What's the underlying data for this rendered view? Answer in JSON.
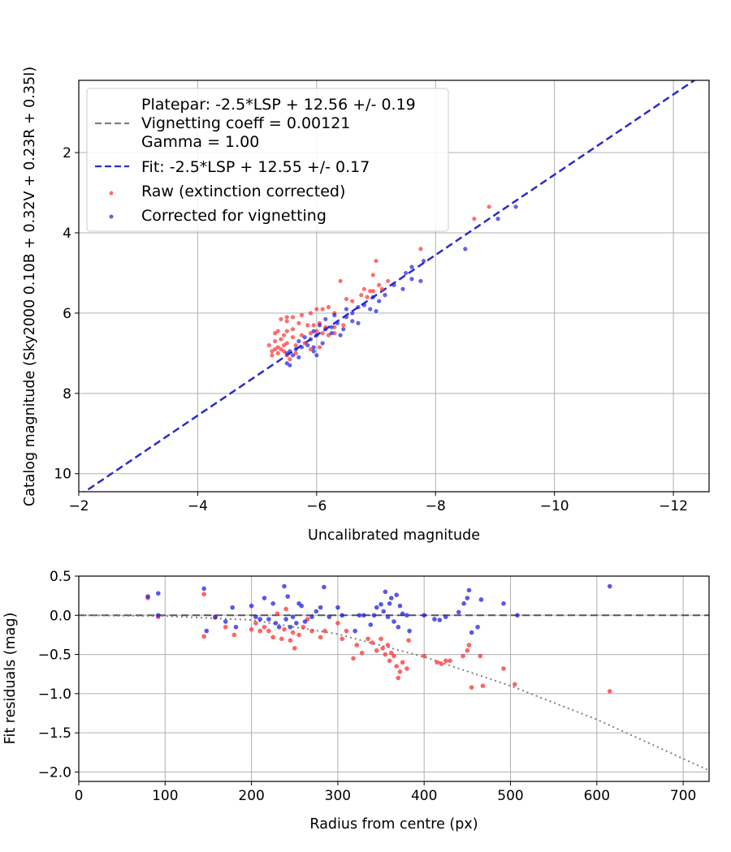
{
  "chart_data": [
    {
      "type": "scatter",
      "xlabel": "Uncalibrated magnitude",
      "ylabel": "Catalog magnitude (Sky2000 0.10B + 0.32V + 0.23R + 0.35I)",
      "xlim": [
        -2,
        -12.6
      ],
      "ylim": [
        10.45,
        0.2
      ],
      "x_reversed": true,
      "y_reversed": true,
      "xticks": [
        -2,
        -4,
        -6,
        -8,
        -10,
        -12
      ],
      "xtick_labels": [
        "−2",
        "−4",
        "−6",
        "−8",
        "−10",
        "−12"
      ],
      "yticks": [
        2,
        4,
        6,
        8,
        10
      ],
      "ytick_labels": [
        "2",
        "4",
        "6",
        "8",
        "10"
      ],
      "grid": true,
      "legend_position": "top-left",
      "legend": {
        "platepar_label": "Platepar: -2.5*LSP + 12.56 +/- 0.19",
        "vignetting_label": "Vignetting coeff = 0.00121",
        "gamma_label": "Gamma = 1.00",
        "fit_label": "Fit: -2.5*LSP + 12.55 +/- 0.17",
        "raw_label": "Raw (extinction corrected)",
        "corrected_label": "Corrected for vignetting"
      },
      "lines": [
        {
          "name": "platepar",
          "slope": -2.5,
          "intercept": 12.56,
          "color": "#808080",
          "style": "dashed"
        },
        {
          "name": "fit",
          "slope": -2.5,
          "intercept": 12.55,
          "color": "#2a2ad0",
          "style": "dashed"
        }
      ],
      "series": [
        {
          "name": "Raw (extinction corrected)",
          "color": "#ff3030",
          "points": [
            [
              -8.9,
              3.35
            ],
            [
              -8.65,
              3.65
            ],
            [
              -7.75,
              4.4
            ],
            [
              -7.0,
              4.7
            ],
            [
              -6.95,
              5.05
            ],
            [
              -7.2,
              5.2
            ],
            [
              -6.4,
              5.2
            ],
            [
              -7.05,
              5.3
            ],
            [
              -6.8,
              5.4
            ],
            [
              -6.9,
              5.45
            ],
            [
              -6.75,
              5.55
            ],
            [
              -6.85,
              5.6
            ],
            [
              -6.95,
              5.45
            ],
            [
              -7.1,
              5.4
            ],
            [
              -6.6,
              5.7
            ],
            [
              -6.5,
              5.65
            ],
            [
              -6.2,
              5.85
            ],
            [
              -6.1,
              5.9
            ],
            [
              -6.0,
              5.9
            ],
            [
              -6.3,
              6.0
            ],
            [
              -5.9,
              6.0
            ],
            [
              -5.75,
              6.05
            ],
            [
              -5.6,
              6.1
            ],
            [
              -5.5,
              6.1
            ],
            [
              -5.4,
              6.15
            ],
            [
              -5.5,
              6.2
            ],
            [
              -5.7,
              6.25
            ],
            [
              -5.85,
              6.3
            ],
            [
              -5.95,
              6.3
            ],
            [
              -6.05,
              6.25
            ],
            [
              -6.15,
              6.35
            ],
            [
              -6.3,
              6.35
            ],
            [
              -6.45,
              6.3
            ],
            [
              -5.6,
              6.4
            ],
            [
              -5.5,
              6.45
            ],
            [
              -5.35,
              6.45
            ],
            [
              -5.3,
              6.5
            ],
            [
              -5.45,
              6.55
            ],
            [
              -5.6,
              6.6
            ],
            [
              -5.75,
              6.55
            ],
            [
              -5.9,
              6.5
            ],
            [
              -6.0,
              6.45
            ],
            [
              -6.1,
              6.5
            ],
            [
              -6.2,
              6.55
            ],
            [
              -6.3,
              6.5
            ],
            [
              -5.4,
              6.65
            ],
            [
              -5.3,
              6.7
            ],
            [
              -5.2,
              6.8
            ],
            [
              -5.35,
              6.85
            ],
            [
              -5.5,
              6.75
            ],
            [
              -5.65,
              6.8
            ],
            [
              -5.8,
              6.75
            ],
            [
              -5.45,
              6.95
            ],
            [
              -5.35,
              7.0
            ],
            [
              -5.25,
              7.05
            ],
            [
              -5.5,
              7.05
            ],
            [
              -5.9,
              6.9
            ],
            [
              -6.05,
              6.85
            ],
            [
              -5.55,
              7.15
            ],
            [
              -5.65,
              7.0
            ],
            [
              -5.4,
              6.9
            ],
            [
              -5.3,
              6.9
            ],
            [
              -5.45,
              6.8
            ],
            [
              -5.25,
              6.95
            ]
          ]
        },
        {
          "name": "Corrected for vignetting",
          "color": "#2020e0",
          "points": [
            [
              -9.35,
              3.35
            ],
            [
              -9.05,
              3.65
            ],
            [
              -8.5,
              4.4
            ],
            [
              -7.8,
              4.7
            ],
            [
              -7.6,
              4.85
            ],
            [
              -7.5,
              5.0
            ],
            [
              -7.75,
              5.2
            ],
            [
              -7.6,
              5.15
            ],
            [
              -7.3,
              5.3
            ],
            [
              -7.45,
              5.4
            ],
            [
              -7.15,
              5.55
            ],
            [
              -6.95,
              5.6
            ],
            [
              -7.05,
              5.7
            ],
            [
              -6.8,
              5.8
            ],
            [
              -6.7,
              5.85
            ],
            [
              -6.9,
              5.9
            ],
            [
              -7.0,
              5.95
            ],
            [
              -6.5,
              5.9
            ],
            [
              -6.6,
              6.0
            ],
            [
              -6.3,
              6.05
            ],
            [
              -6.5,
              6.1
            ],
            [
              -6.15,
              6.15
            ],
            [
              -6.35,
              6.25
            ],
            [
              -6.6,
              6.2
            ],
            [
              -6.7,
              6.25
            ],
            [
              -6.05,
              6.3
            ],
            [
              -6.25,
              6.35
            ],
            [
              -6.15,
              6.4
            ],
            [
              -6.45,
              6.4
            ],
            [
              -5.95,
              6.45
            ],
            [
              -6.0,
              6.55
            ],
            [
              -6.25,
              6.5
            ],
            [
              -6.4,
              6.55
            ],
            [
              -5.8,
              6.6
            ],
            [
              -5.9,
              6.65
            ],
            [
              -5.7,
              6.7
            ],
            [
              -5.85,
              6.8
            ],
            [
              -5.75,
              6.85
            ],
            [
              -5.65,
              6.9
            ],
            [
              -5.55,
              6.95
            ],
            [
              -5.95,
              6.85
            ],
            [
              -5.5,
              7.0
            ],
            [
              -5.6,
              7.05
            ],
            [
              -6.0,
              7.05
            ],
            [
              -5.7,
              7.1
            ],
            [
              -5.5,
              7.25
            ],
            [
              -5.55,
              7.3
            ],
            [
              -5.95,
              6.95
            ],
            [
              -6.1,
              6.75
            ]
          ]
        }
      ]
    },
    {
      "type": "scatter",
      "xlabel": "Radius from centre (px)",
      "ylabel": "Fit residuals (mag)",
      "xlim": [
        0,
        730
      ],
      "ylim": [
        -2.12,
        0.5
      ],
      "xticks": [
        0,
        100,
        200,
        300,
        400,
        500,
        600,
        700
      ],
      "xtick_labels": [
        "0",
        "100",
        "200",
        "300",
        "400",
        "500",
        "600",
        "700"
      ],
      "yticks": [
        0.5,
        0.0,
        -0.5,
        -1.0,
        -1.5,
        -2.0
      ],
      "ytick_labels": [
        "0.5",
        "0.0",
        "−0.5",
        "−1.0",
        "−1.5",
        "−2.0"
      ],
      "grid": true,
      "reference_line": {
        "y": 0,
        "color": "#555555",
        "style": "dashed"
      },
      "vignetting_curve": {
        "color": "#808080",
        "style": "dotted",
        "x": [
          0,
          100,
          200,
          300,
          400,
          500,
          600,
          730
        ],
        "y": [
          0,
          -0.01,
          -0.06,
          -0.24,
          -0.53,
          -0.9,
          -1.33,
          -1.98
        ]
      },
      "series": [
        {
          "name": "Raw (extinction corrected)",
          "color": "#ff3030",
          "points": [
            [
              80,
              0.22
            ],
            [
              92,
              -0.02
            ],
            [
              145,
              -0.27
            ],
            [
              145,
              0.27
            ],
            [
              158,
              -0.03
            ],
            [
              170,
              -0.15
            ],
            [
              180,
              -0.25
            ],
            [
              200,
              -0.18
            ],
            [
              205,
              -0.1
            ],
            [
              210,
              -0.2
            ],
            [
              215,
              -0.15
            ],
            [
              220,
              -0.2
            ],
            [
              225,
              -0.28
            ],
            [
              230,
              0.02
            ],
            [
              235,
              -0.3
            ],
            [
              238,
              -0.18
            ],
            [
              240,
              0.08
            ],
            [
              245,
              -0.32
            ],
            [
              248,
              -0.22
            ],
            [
              250,
              -0.42
            ],
            [
              255,
              -0.25
            ],
            [
              260,
              -0.15
            ],
            [
              265,
              -0.05
            ],
            [
              270,
              -0.2
            ],
            [
              280,
              -0.28
            ],
            [
              285,
              -0.2
            ],
            [
              300,
              -0.1
            ],
            [
              305,
              -0.3
            ],
            [
              310,
              -0.2
            ],
            [
              318,
              -0.55
            ],
            [
              322,
              -0.38
            ],
            [
              328,
              -0.48
            ],
            [
              335,
              -0.3
            ],
            [
              340,
              -0.35
            ],
            [
              345,
              -0.45
            ],
            [
              350,
              -0.3
            ],
            [
              352,
              -0.42
            ],
            [
              355,
              -0.5
            ],
            [
              358,
              -0.38
            ],
            [
              360,
              -0.58
            ],
            [
              362,
              -0.48
            ],
            [
              365,
              -0.52
            ],
            [
              368,
              -0.65
            ],
            [
              370,
              -0.8
            ],
            [
              372,
              -0.72
            ],
            [
              375,
              -0.6
            ],
            [
              380,
              -0.68
            ],
            [
              382,
              -0.32
            ],
            [
              400,
              -0.52
            ],
            [
              415,
              -0.6
            ],
            [
              420,
              -0.62
            ],
            [
              425,
              -0.58
            ],
            [
              430,
              -0.58
            ],
            [
              445,
              -0.52
            ],
            [
              450,
              -0.45
            ],
            [
              452,
              -0.38
            ],
            [
              455,
              -0.92
            ],
            [
              465,
              -0.52
            ],
            [
              468,
              -0.9
            ],
            [
              492,
              -0.68
            ],
            [
              505,
              -0.88
            ],
            [
              615,
              -0.97
            ]
          ]
        },
        {
          "name": "Corrected for vignetting",
          "color": "#2020e0",
          "points": [
            [
              80,
              0.24
            ],
            [
              92,
              0.28
            ],
            [
              92,
              0.0
            ],
            [
              145,
              0.34
            ],
            [
              148,
              -0.2
            ],
            [
              158,
              -0.02
            ],
            [
              170,
              -0.08
            ],
            [
              178,
              0.1
            ],
            [
              182,
              -0.15
            ],
            [
              200,
              0.12
            ],
            [
              205,
              -0.02
            ],
            [
              210,
              -0.05
            ],
            [
              215,
              0.22
            ],
            [
              220,
              -0.05
            ],
            [
              225,
              0.15
            ],
            [
              228,
              -0.1
            ],
            [
              232,
              -0.15
            ],
            [
              238,
              0.37
            ],
            [
              240,
              -0.05
            ],
            [
              242,
              0.24
            ],
            [
              245,
              -0.15
            ],
            [
              248,
              -0.02
            ],
            [
              252,
              -0.1
            ],
            [
              255,
              0.15
            ],
            [
              258,
              0.12
            ],
            [
              262,
              -0.08
            ],
            [
              270,
              -0.02
            ],
            [
              275,
              0.05
            ],
            [
              280,
              0.1
            ],
            [
              284,
              0.36
            ],
            [
              290,
              -0.02
            ],
            [
              300,
              0.1
            ],
            [
              305,
              0.0
            ],
            [
              320,
              -0.2
            ],
            [
              325,
              0.0
            ],
            [
              330,
              0.0
            ],
            [
              338,
              -0.12
            ],
            [
              342,
              0.0
            ],
            [
              345,
              0.1
            ],
            [
              350,
              0.14
            ],
            [
              353,
              0.05
            ],
            [
              355,
              0.3
            ],
            [
              358,
              -0.02
            ],
            [
              360,
              0.15
            ],
            [
              362,
              0.22
            ],
            [
              365,
              -0.08
            ],
            [
              368,
              0.26
            ],
            [
              370,
              -0.15
            ],
            [
              372,
              0.12
            ],
            [
              375,
              0.02
            ],
            [
              380,
              0.0
            ],
            [
              383,
              -0.2
            ],
            [
              400,
              0.0
            ],
            [
              412,
              -0.05
            ],
            [
              418,
              -0.06
            ],
            [
              425,
              -0.02
            ],
            [
              440,
              0.04
            ],
            [
              446,
              0.15
            ],
            [
              450,
              0.22
            ],
            [
              452,
              0.32
            ],
            [
              455,
              -0.22
            ],
            [
              462,
              -0.15
            ],
            [
              466,
              0.2
            ],
            [
              492,
              0.15
            ],
            [
              508,
              0.0
            ],
            [
              615,
              0.37
            ]
          ]
        }
      ]
    }
  ]
}
